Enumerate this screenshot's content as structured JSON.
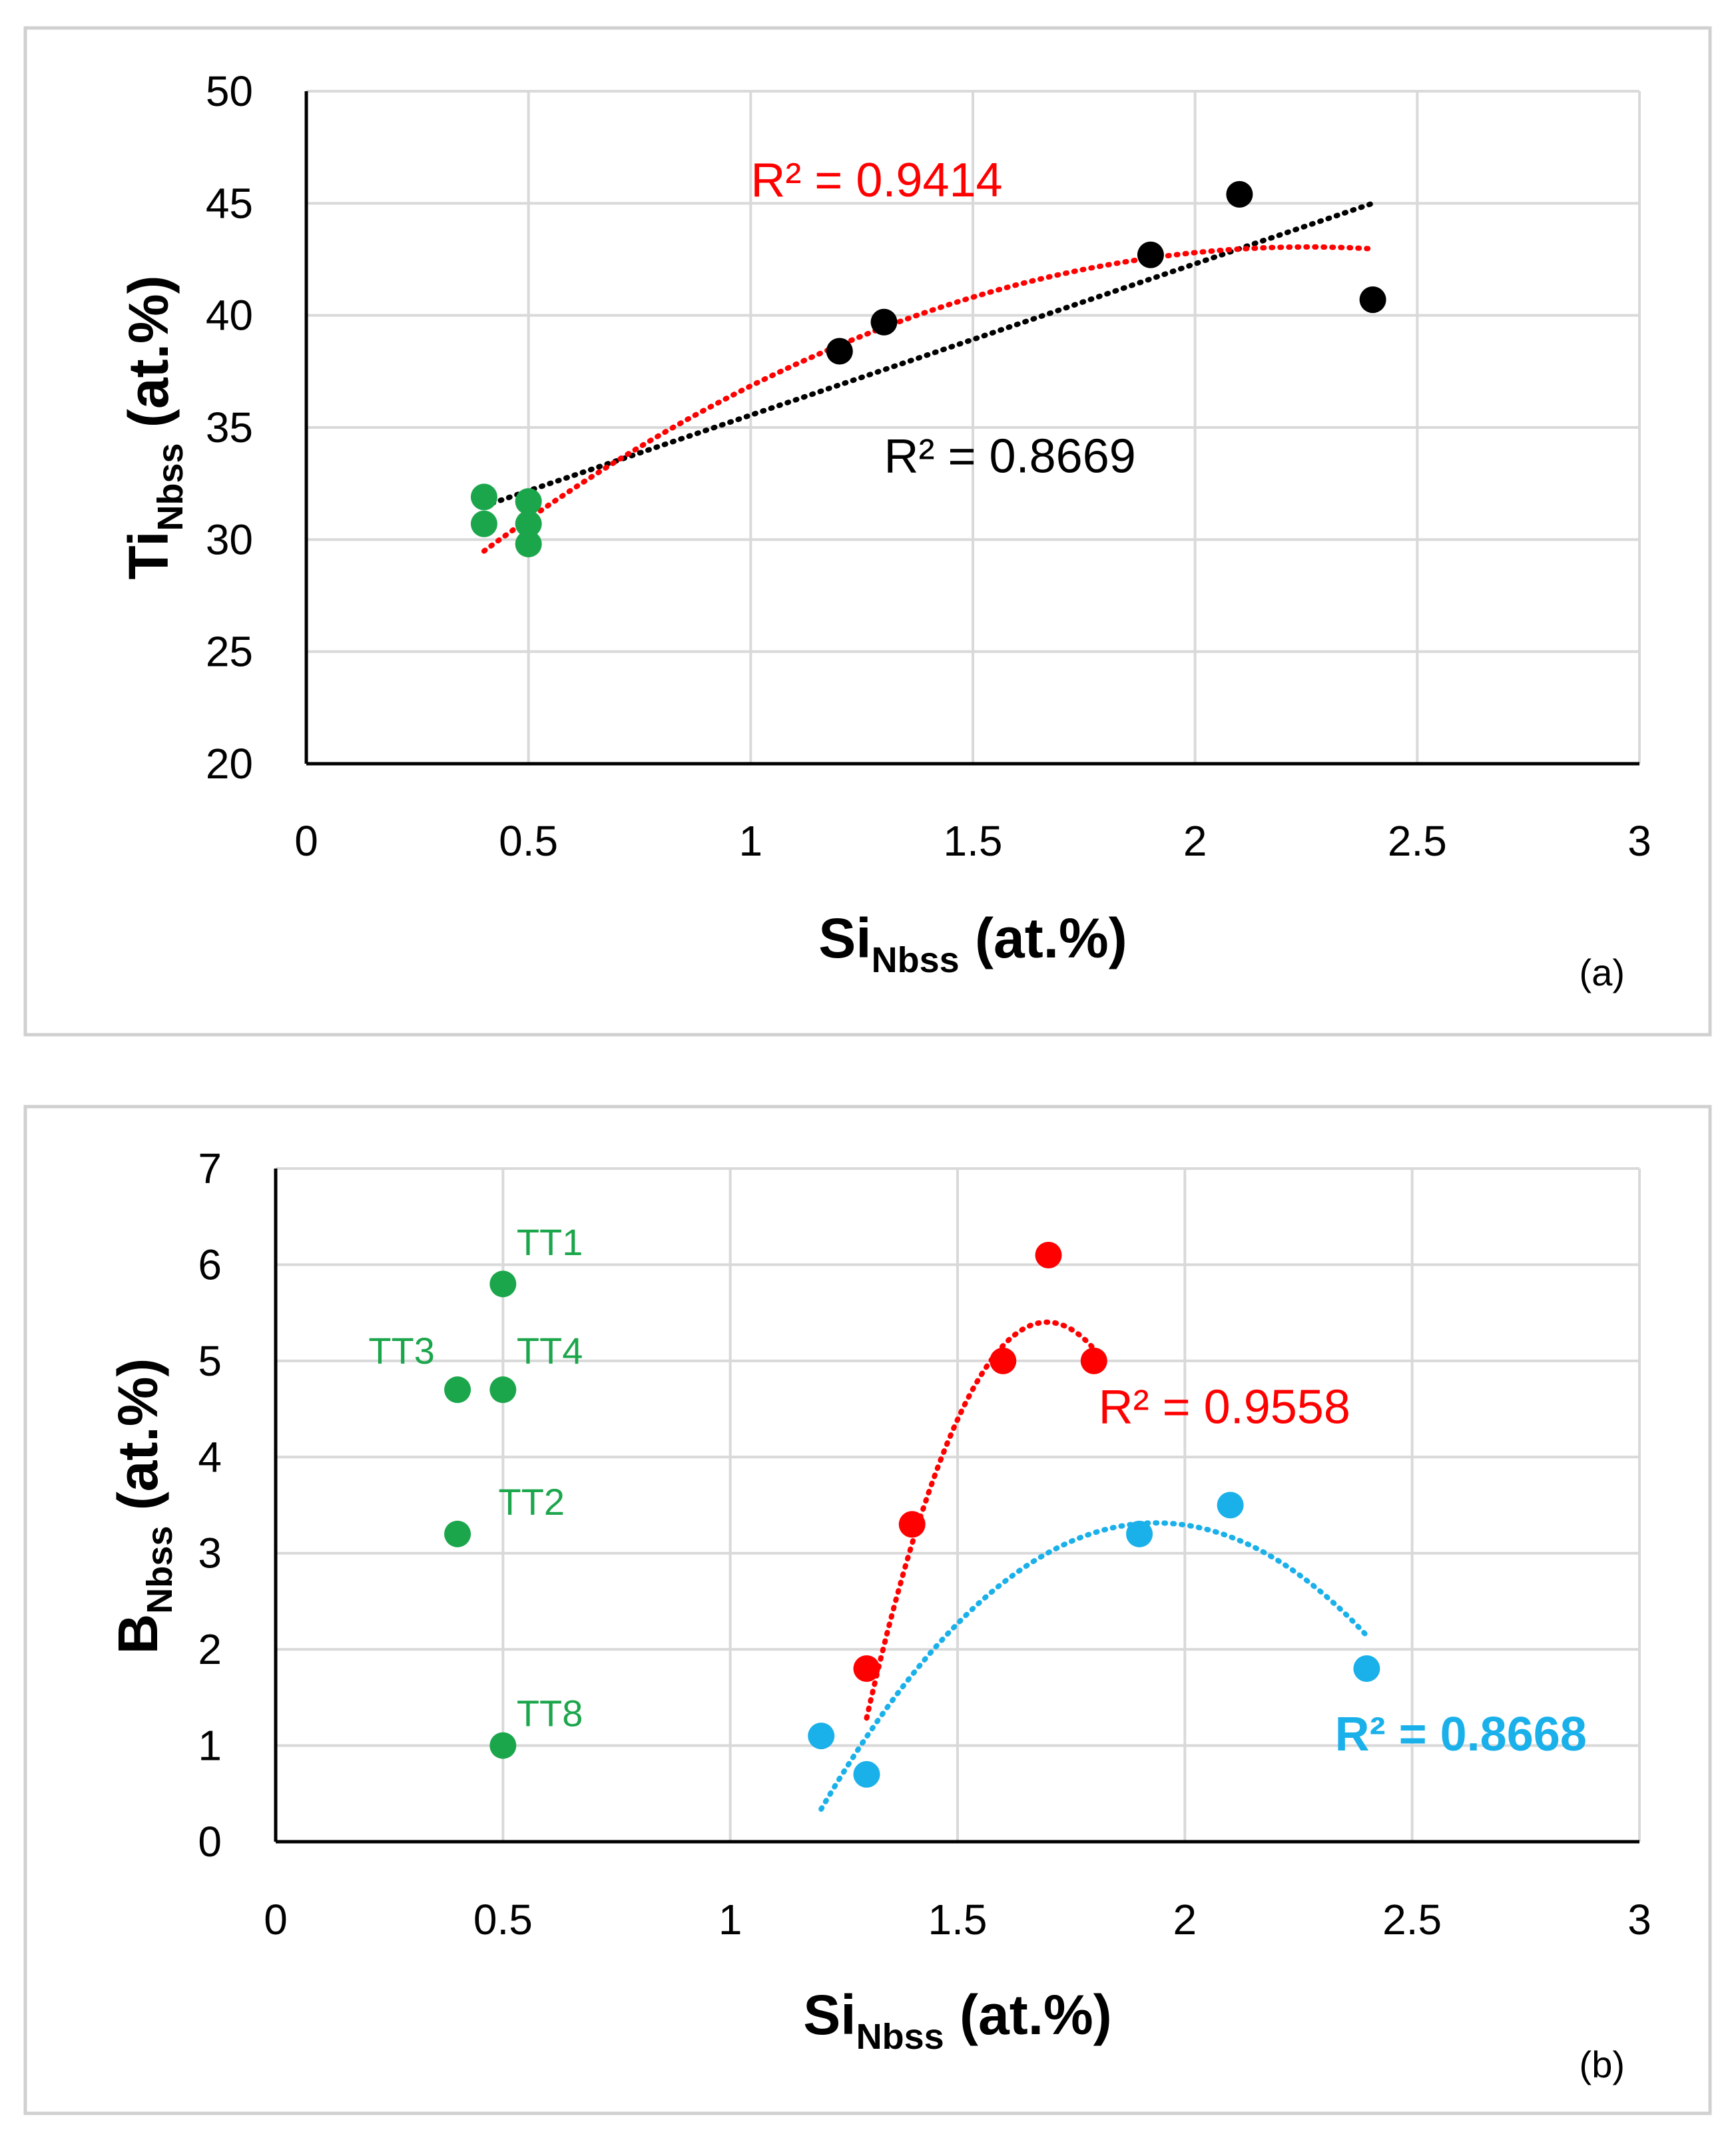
{
  "chart_data": [
    {
      "type": "scatter",
      "panel": "(a)",
      "xlabel": "Si",
      "xlabel_sub": "Nbss",
      "xlabel_suffix": " (at.%)",
      "ylabel": "Ti",
      "ylabel_sub": "Nbss",
      "ylabel_suffix": " (at.%)",
      "xlim": [
        0,
        3
      ],
      "ylim": [
        20,
        50
      ],
      "xticks": [
        "0",
        "0.5",
        "1",
        "1.5",
        "2",
        "2.5",
        "3"
      ],
      "yticks": [
        "20",
        "25",
        "30",
        "35",
        "40",
        "45",
        "50"
      ],
      "xtick_values": [
        0,
        0.5,
        1,
        1.5,
        2,
        2.5,
        3
      ],
      "ytick_values": [
        20,
        25,
        30,
        35,
        40,
        45,
        50
      ],
      "grid": true,
      "series": [
        {
          "name": "green",
          "color": "#1ca64c",
          "points": [
            [
              0.4,
              31.9
            ],
            [
              0.4,
              30.7
            ],
            [
              0.5,
              31.7
            ],
            [
              0.5,
              30.7
            ],
            [
              0.5,
              29.8
            ]
          ]
        },
        {
          "name": "black",
          "color": "#000000",
          "points": [
            [
              1.2,
              38.4
            ],
            [
              1.3,
              39.7
            ],
            [
              1.9,
              42.7
            ],
            [
              2.1,
              45.4
            ],
            [
              2.4,
              40.7
            ]
          ]
        }
      ],
      "trendlines": [
        {
          "kind": "linear",
          "color": "#000000",
          "x_range": [
            0.4,
            2.4
          ],
          "coef": [
            28.8,
            6.75
          ],
          "r2_label": "R² = 0.8669",
          "label_at": [
            1.3,
            33.0
          ],
          "bold": false
        },
        {
          "kind": "poly2",
          "color": "#ff0000",
          "x_range": [
            0.4,
            2.4
          ],
          "coef": [
            23.0,
            17.8,
            -3.95
          ],
          "r2_label": "R² = 0.9414",
          "label_at": [
            1.0,
            45.3
          ],
          "bold": false
        }
      ],
      "annotations": []
    },
    {
      "type": "scatter",
      "panel": "(b)",
      "xlabel": "Si",
      "xlabel_sub": "Nbss",
      "xlabel_suffix": " (at.%)",
      "ylabel": "B",
      "ylabel_sub": "Nbss",
      "ylabel_suffix": " (at.%)",
      "xlim": [
        0,
        3
      ],
      "ylim": [
        0,
        7
      ],
      "xticks": [
        "0",
        "0.5",
        "1",
        "1.5",
        "2",
        "2.5",
        "3"
      ],
      "yticks": [
        "0",
        "1",
        "2",
        "3",
        "4",
        "5",
        "6",
        "7"
      ],
      "xtick_values": [
        0,
        0.5,
        1,
        1.5,
        2,
        2.5,
        3
      ],
      "ytick_values": [
        0,
        1,
        2,
        3,
        4,
        5,
        6,
        7
      ],
      "grid": true,
      "series": [
        {
          "name": "green",
          "color": "#1ca64c",
          "points": [
            [
              0.5,
              5.8
            ],
            [
              0.4,
              4.7
            ],
            [
              0.5,
              4.7
            ],
            [
              0.4,
              3.2
            ],
            [
              0.5,
              1.0
            ]
          ]
        },
        {
          "name": "red",
          "color": "#ff0000",
          "points": [
            [
              1.3,
              1.8
            ],
            [
              1.4,
              3.3
            ],
            [
              1.6,
              5.0
            ],
            [
              1.7,
              6.1
            ],
            [
              1.8,
              5.0
            ]
          ]
        },
        {
          "name": "blue",
          "color": "#1ab0ea",
          "points": [
            [
              1.2,
              1.1
            ],
            [
              1.3,
              0.7
            ],
            [
              1.9,
              3.2
            ],
            [
              2.1,
              3.5
            ],
            [
              2.4,
              1.8
            ]
          ]
        }
      ],
      "trendlines": [
        {
          "kind": "poly2",
          "color": "#ff0000",
          "x_range": [
            1.3,
            1.8
          ],
          "coef": [
            -69.86,
            88.71,
            -26.14
          ],
          "r2_label": "R² = 0.9558",
          "label_at": [
            1.81,
            4.35
          ],
          "bold": false
        },
        {
          "kind": "poly2",
          "color": "#1ab0ea",
          "x_range": [
            1.2,
            2.4
          ],
          "coef": [
            -17.23,
            21.21,
            -5.474
          ],
          "r2_label": "R² = 0.8668",
          "label_at": [
            2.33,
            0.95
          ],
          "bold": true
        }
      ],
      "annotations": [
        {
          "text": "TT1",
          "x": 0.53,
          "y": 6.1,
          "anchor": "start"
        },
        {
          "text": "TT3",
          "x": 0.35,
          "y": 4.97,
          "anchor": "end"
        },
        {
          "text": "TT4",
          "x": 0.53,
          "y": 4.97,
          "anchor": "start"
        },
        {
          "text": "TT2",
          "x": 0.49,
          "y": 3.4,
          "anchor": "start"
        },
        {
          "text": "TT8",
          "x": 0.53,
          "y": 1.2,
          "anchor": "start"
        }
      ]
    }
  ]
}
